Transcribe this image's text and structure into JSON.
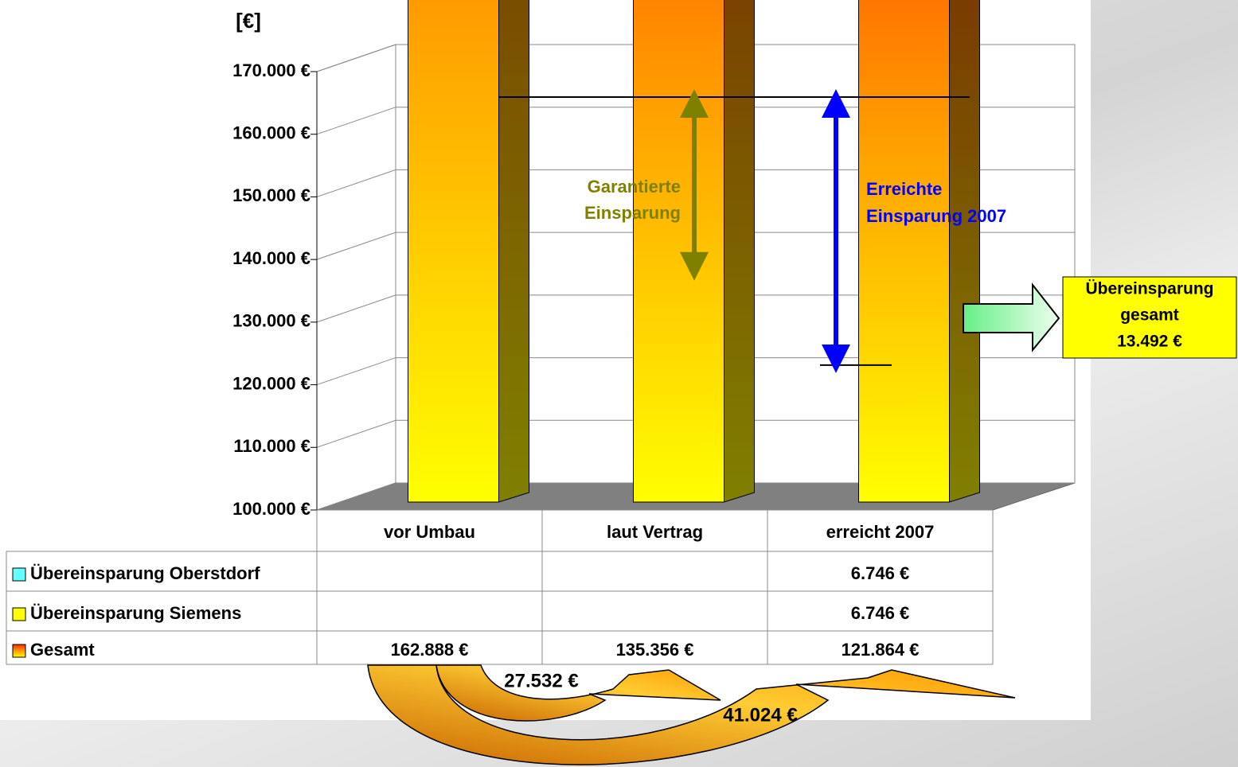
{
  "chart_data": {
    "type": "bar3d_stacked",
    "y_label": "[€]",
    "categories": [
      "vor Umbau",
      "laut Vertrag",
      "erreicht 2007"
    ],
    "series": [
      {
        "name": "Gesamt",
        "color": "#ff2a00",
        "values": [
          162888,
          135356,
          121864
        ],
        "value_labels": [
          "162.888 €",
          "135.356 €",
          "121.864 €"
        ]
      },
      {
        "name": "Übereinsparung Siemens",
        "color": "#ffff00",
        "values": [
          null,
          null,
          6746
        ],
        "value_labels": [
          null,
          null,
          "6.746 €"
        ]
      },
      {
        "name": "Übereinsparung Oberstdorf",
        "color": "#66ffff",
        "values": [
          null,
          null,
          6746
        ],
        "value_labels": [
          null,
          null,
          "6.746 €"
        ]
      }
    ],
    "ylim": [
      100000,
      170000
    ],
    "yticks": [
      {
        "value": 100000,
        "label": "100.000 €"
      },
      {
        "value": 110000,
        "label": "110.000 €"
      },
      {
        "value": 120000,
        "label": "120.000 €"
      },
      {
        "value": 130000,
        "label": "130.000 €"
      },
      {
        "value": 140000,
        "label": "140.000 €"
      },
      {
        "value": 150000,
        "label": "150.000 €"
      },
      {
        "value": 160000,
        "label": "160.000 €"
      },
      {
        "value": 170000,
        "label": "170.000 €"
      }
    ],
    "grid": true,
    "annotations": {
      "guaranteed": [
        "Garantierte",
        "Einsparung"
      ],
      "achieved": [
        "Erreichte",
        "Einsparung 2007"
      ],
      "callout": [
        "Übereinsparung",
        "gesamt",
        "13.492 €"
      ],
      "diff_contract": "27.532 €",
      "diff_achieved": "41.024 €"
    }
  }
}
